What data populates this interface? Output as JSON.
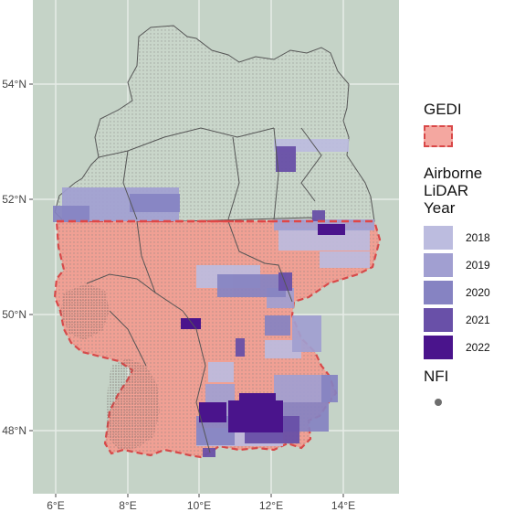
{
  "map": {
    "background_color": "#c5d3c7",
    "grid_color": "#e6ece7",
    "x_ticks": [
      "6°E",
      "8°E",
      "10°E",
      "12°E",
      "14°E"
    ],
    "y_ticks": [
      "54°N",
      "52°N",
      "50°N",
      "48°N"
    ],
    "gedi_color": "#f0a094",
    "gedi_border_color": "#d94848",
    "nfi_point_color": "#6e6e6e"
  },
  "legend": {
    "gedi": {
      "title": "GEDI"
    },
    "lidar": {
      "title_line1": "Airborne LiDAR",
      "title_line2": "Year",
      "items": [
        {
          "label": "2018",
          "color": "#bcbcdf"
        },
        {
          "label": "2019",
          "color": "#a19fd1"
        },
        {
          "label": "2020",
          "color": "#8683c2"
        },
        {
          "label": "2021",
          "color": "#6950a8"
        },
        {
          "label": "2022",
          "color": "#4a148c"
        }
      ]
    },
    "nfi": {
      "title": "NFI"
    }
  }
}
